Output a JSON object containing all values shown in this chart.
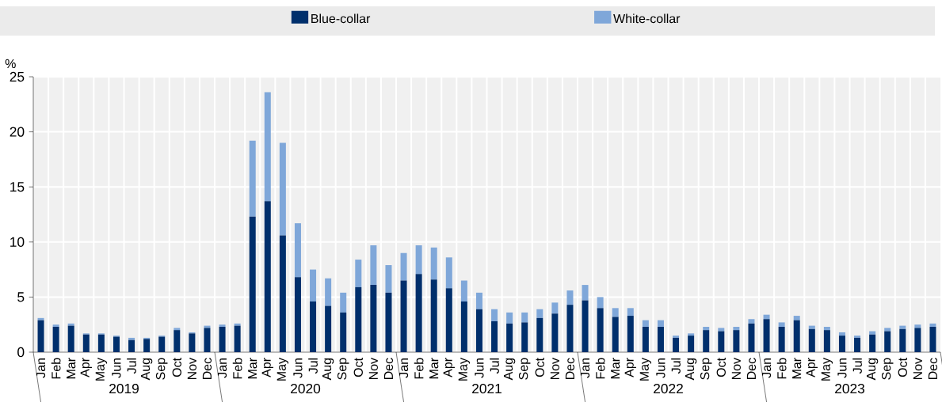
{
  "chart_data": {
    "type": "bar",
    "stacked": true,
    "ylabel": "%",
    "categories": [
      "Jan",
      "Feb",
      "Mar",
      "Apr",
      "May",
      "Jun",
      "Jul",
      "Aug",
      "Sep",
      "Oct",
      "Nov",
      "Dec",
      "Jan",
      "Feb",
      "Mar",
      "Apr",
      "May",
      "Jun",
      "Jul",
      "Aug",
      "Sep",
      "Oct",
      "Nov",
      "Dec",
      "Jan",
      "Feb",
      "Mar",
      "Apr",
      "May",
      "Jun",
      "Jul",
      "Aug",
      "Sep",
      "Oct",
      "Nov",
      "Dec",
      "Jan",
      "Feb",
      "Mar",
      "Apr",
      "May",
      "Jun",
      "Jul",
      "Aug",
      "Sep",
      "Oct",
      "Nov",
      "Dec",
      "Jan",
      "Feb",
      "Mar",
      "Apr",
      "May",
      "Jun",
      "Jul",
      "Aug",
      "Sep",
      "Oct",
      "Nov",
      "Dec"
    ],
    "annotations": [
      "2019",
      "2020",
      "2021",
      "2022",
      "2023"
    ],
    "series": [
      {
        "name": "Blue-collar",
        "color": "#002f6c",
        "values": [
          2.9,
          2.3,
          2.4,
          1.6,
          1.6,
          1.4,
          1.1,
          1.2,
          1.4,
          2.0,
          1.7,
          2.2,
          2.3,
          2.4,
          12.3,
          13.7,
          10.6,
          6.8,
          4.6,
          4.2,
          3.6,
          5.9,
          6.1,
          5.4,
          6.5,
          7.1,
          6.6,
          5.8,
          4.6,
          3.9,
          2.8,
          2.6,
          2.7,
          3.1,
          3.5,
          4.3,
          4.7,
          4.0,
          3.2,
          3.3,
          2.3,
          2.3,
          1.3,
          1.5,
          2.0,
          1.9,
          2.0,
          2.6,
          3.0,
          2.3,
          2.9,
          2.1,
          2.0,
          1.5,
          1.3,
          1.6,
          1.9,
          2.1,
          2.2,
          2.3
        ]
      },
      {
        "name": "White-collar",
        "color": "#7fa7d9",
        "values": [
          0.2,
          0.2,
          0.2,
          0.1,
          0.1,
          0.1,
          0.2,
          0.1,
          0.1,
          0.2,
          0.1,
          0.2,
          0.2,
          0.2,
          6.9,
          9.9,
          8.4,
          4.9,
          2.9,
          2.5,
          1.8,
          2.5,
          3.6,
          2.5,
          2.5,
          2.6,
          2.9,
          2.8,
          1.9,
          1.5,
          1.1,
          1.0,
          0.9,
          0.8,
          1.0,
          1.3,
          1.4,
          1.0,
          0.8,
          0.7,
          0.6,
          0.6,
          0.2,
          0.2,
          0.3,
          0.3,
          0.3,
          0.4,
          0.4,
          0.4,
          0.4,
          0.3,
          0.3,
          0.3,
          0.2,
          0.3,
          0.3,
          0.3,
          0.3,
          0.3
        ]
      }
    ],
    "ylim": [
      0,
      25
    ],
    "yticks": [
      0,
      5,
      10,
      15,
      20,
      25
    ],
    "grid": true,
    "legend": "top"
  }
}
